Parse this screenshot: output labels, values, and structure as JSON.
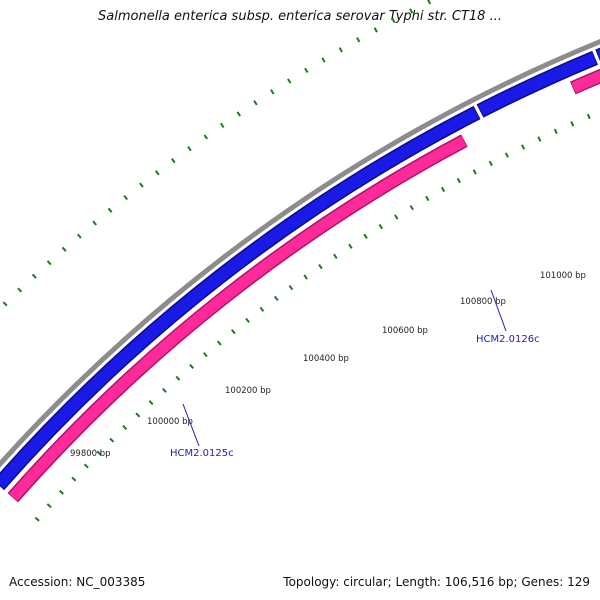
{
  "title": "Salmonella enterica subsp. enterica serovar Typhi str. CT18 ...",
  "accession": "Accession: NC_003385",
  "summary": "Topology: circular; Length: 106,516 bp; Genes: 129",
  "colors": {
    "backbone": "#8c8c8c",
    "forward_gene": "#1a1ae6",
    "forward_gene_edge": "#0a0a8a",
    "reverse_gene": "#ff2a9a",
    "reverse_gene_edge": "#b0106a",
    "tick": "#1e7a1e",
    "label_line": "#1f1fb3"
  },
  "coordinate_labels": [
    "99800 bp",
    "100000 bp",
    "100200 bp",
    "100400 bp",
    "100600 bp",
    "100800 bp",
    "101000 bp"
  ],
  "genes": [
    {
      "name": "HCM2.0125c",
      "strand": "reverse"
    },
    {
      "name": "HCM2.0126c",
      "strand": "forward"
    }
  ]
}
